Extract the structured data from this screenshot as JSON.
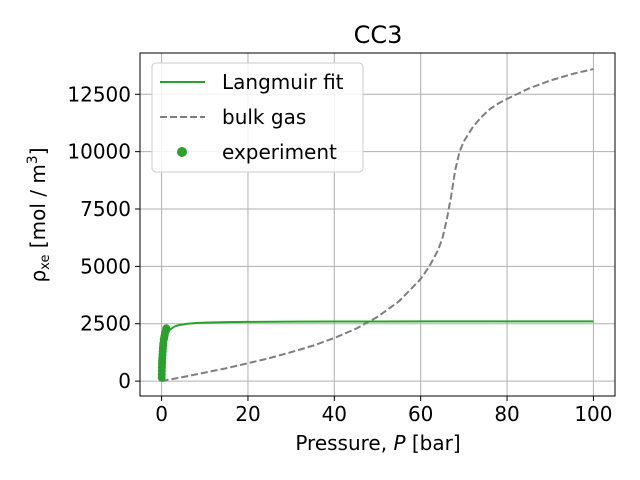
{
  "chart_data": {
    "type": "line",
    "title": "CC3",
    "xlabel": "Pressure, P [bar]",
    "ylabel": "ρxe [mol / m³]",
    "xlim": [
      -5,
      105
    ],
    "ylim": [
      -650,
      14300
    ],
    "x_ticks": [
      0,
      20,
      40,
      60,
      80,
      100
    ],
    "y_ticks": [
      0,
      2500,
      5000,
      7500,
      10000,
      12500
    ],
    "grid": true,
    "legend_position": "top-left",
    "series": [
      {
        "name": "Langmuir fit",
        "kind": "line",
        "color": "#2ca02c",
        "style": "solid",
        "x": [
          0,
          0.1,
          0.2,
          0.35,
          0.5,
          0.75,
          1,
          1.5,
          2,
          3,
          4,
          6,
          8,
          10,
          15,
          20,
          30,
          40,
          50,
          60,
          70,
          80,
          90,
          100
        ],
        "y": [
          0,
          500,
          900,
          1300,
          1550,
          1800,
          1950,
          2150,
          2250,
          2380,
          2440,
          2500,
          2530,
          2550,
          2570,
          2580,
          2590,
          2595,
          2598,
          2600,
          2601,
          2602,
          2603,
          2604
        ]
      },
      {
        "name": "bulk gas",
        "kind": "line",
        "color": "#7f7f7f",
        "style": "dashed",
        "x": [
          0,
          5,
          10,
          15,
          20,
          25,
          30,
          35,
          40,
          45,
          50,
          55,
          60,
          62,
          64,
          65,
          66,
          67,
          68,
          69,
          70,
          72,
          74,
          76,
          78,
          80,
          85,
          90,
          95,
          100
        ],
        "y": [
          0,
          180,
          370,
          560,
          780,
          1000,
          1260,
          1540,
          1880,
          2280,
          2800,
          3480,
          4450,
          5000,
          5700,
          6200,
          7000,
          8000,
          9200,
          10000,
          10450,
          11050,
          11500,
          11850,
          12100,
          12300,
          12750,
          13100,
          13380,
          13600
        ]
      },
      {
        "name": "experiment",
        "kind": "scatter",
        "color": "#2ca02c",
        "x": [
          0.02,
          0.04,
          0.06,
          0.08,
          0.1,
          0.12,
          0.15,
          0.2,
          0.25,
          0.3,
          0.35,
          0.4,
          0.5,
          0.6,
          0.7,
          0.8,
          1.0,
          1.1
        ],
        "y": [
          150,
          300,
          450,
          600,
          750,
          880,
          1000,
          1150,
          1300,
          1420,
          1550,
          1650,
          1800,
          1900,
          2000,
          2100,
          2200,
          2300
        ]
      }
    ]
  }
}
